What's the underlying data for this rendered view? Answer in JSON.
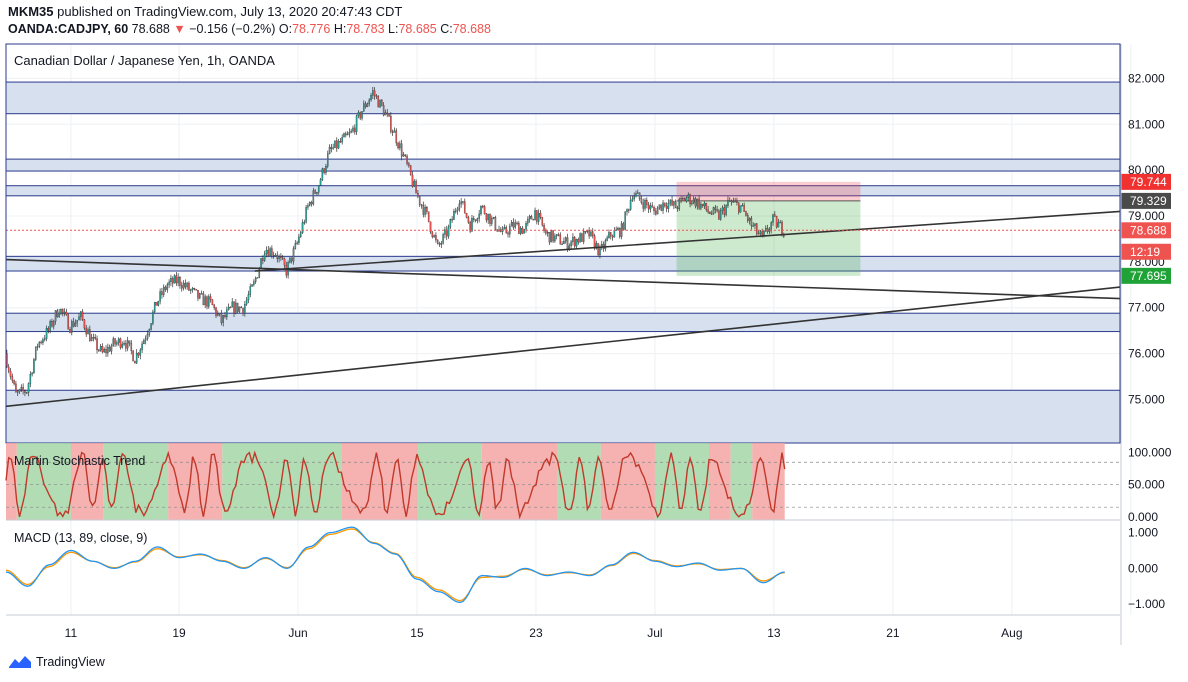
{
  "header": {
    "publisher": "MKM35",
    "published_text": "published on TradingView.com, July 13, 2020 20:47:43 CDT",
    "symbol": "OANDA:CADJPY, 60",
    "last": "78.688",
    "change": "−0.156 (−0.2%)",
    "o_label": "O:",
    "o": "78.776",
    "h_label": "H:",
    "h": "78.783",
    "l_label": "L:",
    "l": "78.685",
    "c_label": "C:",
    "c": "78.688"
  },
  "footer": {
    "brand": "TradingView"
  },
  "colors": {
    "zone_fill": "#d6e0ef",
    "zone_line": "#2a3a8c",
    "up": "#26a69a",
    "down": "#ef5350",
    "stoch_line": "#c0392b",
    "stoch_green": "#a5d6a7",
    "stoch_red": "#f4a3a3",
    "macd_line": "#2196f3",
    "signal_line": "#ff9800",
    "trend_line": "#333333"
  },
  "chart_data": [
    {
      "type": "candlestick",
      "title": "Canadian Dollar / Japanese Yen, 1h, OANDA",
      "x_tick_labels": [
        "11",
        "19",
        "Jun",
        "15",
        "23",
        "Jul",
        "13",
        "21",
        "Aug",
        "11"
      ],
      "y_ticks": [
        82.0,
        81.0,
        80.0,
        79.0,
        78.0,
        77.0,
        76.0,
        75.0
      ],
      "y_tick_labels": [
        "82.000",
        "81.000",
        "80.000",
        "79.000",
        "78.000",
        "77.000",
        "76.000",
        "75.000"
      ],
      "ylim": [
        74.05,
        82.75
      ],
      "xlim": [
        0,
        103
      ],
      "x_tick_positions": [
        6,
        16,
        27,
        38,
        49,
        60,
        71,
        82,
        93,
        104
      ],
      "close_path": [
        [
          0,
          76.0
        ],
        [
          1,
          75.1
        ],
        [
          2,
          75.2
        ],
        [
          3,
          76.2
        ],
        [
          4,
          76.5
        ],
        [
          5,
          77.0
        ],
        [
          6,
          76.6
        ],
        [
          7,
          76.8
        ],
        [
          8,
          76.3
        ],
        [
          9,
          76.0
        ],
        [
          10,
          76.2
        ],
        [
          11,
          76.3
        ],
        [
          12,
          75.9
        ],
        [
          13,
          76.4
        ],
        [
          14,
          77.1
        ],
        [
          15,
          77.5
        ],
        [
          16,
          77.6
        ],
        [
          17,
          77.4
        ],
        [
          18,
          77.2
        ],
        [
          19,
          77.1
        ],
        [
          20,
          76.7
        ],
        [
          21,
          77.0
        ],
        [
          22,
          77.0
        ],
        [
          23,
          77.5
        ],
        [
          24,
          78.3
        ],
        [
          25,
          78.2
        ],
        [
          26,
          77.8
        ],
        [
          27,
          78.4
        ],
        [
          28,
          79.2
        ],
        [
          29,
          79.7
        ],
        [
          30,
          80.4
        ],
        [
          31,
          80.6
        ],
        [
          32,
          80.8
        ],
        [
          33,
          81.3
        ],
        [
          34,
          81.7
        ],
        [
          35,
          81.3
        ],
        [
          36,
          80.8
        ],
        [
          37,
          80.2
        ],
        [
          38,
          79.5
        ],
        [
          39,
          79.0
        ],
        [
          40,
          78.3
        ],
        [
          41,
          78.7
        ],
        [
          42,
          79.4
        ],
        [
          43,
          78.8
        ],
        [
          44,
          79.2
        ],
        [
          45,
          78.9
        ],
        [
          46,
          78.6
        ],
        [
          47,
          78.8
        ],
        [
          48,
          78.7
        ],
        [
          49,
          79.1
        ],
        [
          50,
          78.6
        ],
        [
          51,
          78.5
        ],
        [
          52,
          78.4
        ],
        [
          53,
          78.5
        ],
        [
          54,
          78.6
        ],
        [
          55,
          78.2
        ],
        [
          56,
          78.6
        ],
        [
          57,
          78.7
        ],
        [
          58,
          79.5
        ],
        [
          59,
          79.3
        ],
        [
          60,
          79.1
        ],
        [
          61,
          79.3
        ],
        [
          62,
          79.2
        ],
        [
          63,
          79.4
        ],
        [
          64,
          79.3
        ],
        [
          65,
          79.1
        ],
        [
          66,
          79.0
        ],
        [
          67,
          79.3
        ],
        [
          68,
          79.2
        ],
        [
          69,
          78.8
        ],
        [
          70,
          78.5
        ],
        [
          71,
          78.9
        ],
        [
          72,
          78.7
        ]
      ],
      "zones": [
        [
          81.23,
          81.92
        ],
        [
          79.98,
          80.24
        ],
        [
          79.44,
          79.66
        ],
        [
          77.8,
          78.12
        ],
        [
          76.48,
          76.88
        ],
        [
          74.05,
          75.2
        ]
      ],
      "trendlines": [
        [
          [
            0,
            74.85
          ],
          [
            103,
            77.45
          ]
        ],
        [
          [
            23,
            77.8
          ],
          [
            103,
            79.1
          ]
        ],
        [
          [
            0,
            78.05
          ],
          [
            103,
            77.2
          ]
        ]
      ],
      "position_box": {
        "x_start": 62,
        "x_end": 79,
        "entry": 79.329,
        "stop": 79.744,
        "target": 77.695
      },
      "current_price": 78.688,
      "price_labels": [
        {
          "text": "79.744",
          "value": 79.744,
          "color": "#f0312f"
        },
        {
          "text": "79.329",
          "value": 79.329,
          "color": "#4a4a4a"
        },
        {
          "text": "78.688",
          "value": 78.688,
          "color": "#ef5350"
        },
        {
          "text": "12:19",
          "value": 78.22,
          "color": "#ef5350"
        },
        {
          "text": "77.695",
          "value": 77.695,
          "color": "#1fa336"
        }
      ]
    },
    {
      "type": "line",
      "title": "Martin Stochastic Trend",
      "ylim": [
        -0.05,
        1.15
      ],
      "y_ticks": [
        0,
        0.5,
        1.0
      ],
      "y_tick_labels": [
        "0.000",
        "50.000",
        "100.000"
      ],
      "bands": [
        [
          "red",
          0,
          1
        ],
        [
          "green",
          1,
          6
        ],
        [
          "red",
          6,
          9
        ],
        [
          "green",
          9,
          15
        ],
        [
          "red",
          15,
          20
        ],
        [
          "green",
          20,
          31
        ],
        [
          "red",
          31,
          38
        ],
        [
          "green",
          38,
          44
        ],
        [
          "red",
          44,
          51
        ],
        [
          "green",
          51,
          55
        ],
        [
          "red",
          55,
          60
        ],
        [
          "green",
          60,
          65
        ],
        [
          "red",
          65,
          67
        ],
        [
          "green",
          67,
          69
        ],
        [
          "red",
          69,
          72
        ]
      ]
    },
    {
      "type": "line",
      "title": "MACD (13, 89, close, 9)",
      "ylim": [
        -1.3,
        1.35
      ],
      "y_ticks": [
        1.0,
        0.0,
        -1.0
      ],
      "y_tick_labels": [
        "1.000",
        "0.000",
        "−1.000"
      ],
      "series": [
        {
          "name": "MACD",
          "points": [
            [
              0,
              -0.1
            ],
            [
              2,
              -0.5
            ],
            [
              4,
              0.1
            ],
            [
              6,
              0.5
            ],
            [
              8,
              0.2
            ],
            [
              10,
              0.0
            ],
            [
              12,
              0.2
            ],
            [
              14,
              0.6
            ],
            [
              16,
              0.3
            ],
            [
              18,
              0.4
            ],
            [
              20,
              0.2
            ],
            [
              22,
              0.0
            ],
            [
              24,
              0.3
            ],
            [
              26,
              0.0
            ],
            [
              28,
              0.6
            ],
            [
              30,
              1.0
            ],
            [
              32,
              1.15
            ],
            [
              34,
              0.7
            ],
            [
              36,
              0.4
            ],
            [
              38,
              -0.3
            ],
            [
              40,
              -0.65
            ],
            [
              42,
              -0.95
            ],
            [
              44,
              -0.2
            ],
            [
              46,
              -0.25
            ],
            [
              48,
              0.0
            ],
            [
              50,
              -0.2
            ],
            [
              52,
              -0.1
            ],
            [
              54,
              -0.2
            ],
            [
              56,
              0.1
            ],
            [
              58,
              0.45
            ],
            [
              60,
              0.2
            ],
            [
              62,
              0.05
            ],
            [
              64,
              0.15
            ],
            [
              66,
              -0.05
            ],
            [
              68,
              0.0
            ],
            [
              70,
              -0.4
            ],
            [
              72,
              -0.1
            ]
          ]
        },
        {
          "name": "Signal",
          "points": [
            [
              0,
              -0.05
            ],
            [
              2,
              -0.45
            ],
            [
              4,
              0.05
            ],
            [
              6,
              0.45
            ],
            [
              8,
              0.2
            ],
            [
              10,
              0.02
            ],
            [
              12,
              0.18
            ],
            [
              14,
              0.55
            ],
            [
              16,
              0.32
            ],
            [
              18,
              0.38
            ],
            [
              20,
              0.22
            ],
            [
              22,
              0.02
            ],
            [
              24,
              0.28
            ],
            [
              26,
              0.02
            ],
            [
              28,
              0.55
            ],
            [
              30,
              0.95
            ],
            [
              32,
              1.1
            ],
            [
              34,
              0.72
            ],
            [
              36,
              0.42
            ],
            [
              38,
              -0.25
            ],
            [
              40,
              -0.6
            ],
            [
              42,
              -0.9
            ],
            [
              44,
              -0.25
            ],
            [
              46,
              -0.22
            ],
            [
              48,
              -0.02
            ],
            [
              50,
              -0.18
            ],
            [
              52,
              -0.12
            ],
            [
              54,
              -0.18
            ],
            [
              56,
              0.08
            ],
            [
              58,
              0.42
            ],
            [
              60,
              0.22
            ],
            [
              62,
              0.07
            ],
            [
              64,
              0.13
            ],
            [
              66,
              -0.03
            ],
            [
              68,
              0.0
            ],
            [
              70,
              -0.35
            ],
            [
              72,
              -0.12
            ]
          ]
        }
      ]
    }
  ]
}
